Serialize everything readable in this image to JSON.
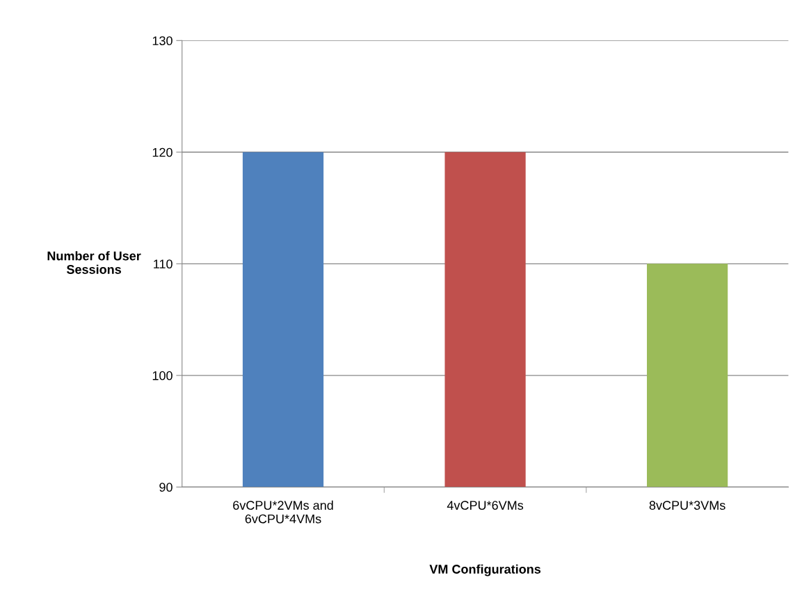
{
  "chart_data": {
    "type": "bar",
    "categories": [
      "6vCPU*2VMs and\n6vCPU*4VMs",
      "4vCPU*6VMs",
      "8vCPU*3VMs"
    ],
    "values": [
      120,
      120,
      110
    ],
    "colors": [
      "#4f81bd",
      "#c0504d",
      "#9bbb59"
    ],
    "xlabel": "VM Configurations",
    "ylabel": "Number of User\nSessions",
    "ylim": [
      90,
      130
    ],
    "yticks": [
      90,
      100,
      110,
      120,
      130
    ],
    "grid": "y",
    "legend": false
  }
}
